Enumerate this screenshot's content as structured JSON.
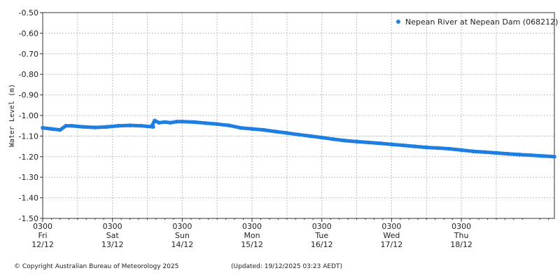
{
  "chart_data": {
    "type": "scatter",
    "ylabel": "Water Level (m)",
    "ylim": [
      -1.5,
      -0.5
    ],
    "yticks": [
      "-0.50",
      "-0.60",
      "-0.70",
      "-0.80",
      "-0.90",
      "-1.00",
      "-1.10",
      "-1.20",
      "-1.30",
      "-1.40",
      "-1.50"
    ],
    "ytick_values": [
      -0.5,
      -0.6,
      -0.7,
      -0.8,
      -0.9,
      -1.0,
      -1.1,
      -1.2,
      -1.3,
      -1.4,
      -1.5
    ],
    "xlim_hours": [
      0,
      176
    ],
    "xticks": [
      {
        "h": 0,
        "time": "0300",
        "day": "Fri",
        "date": "12/12"
      },
      {
        "h": 24,
        "time": "0300",
        "day": "Sat",
        "date": "13/12"
      },
      {
        "h": 48,
        "time": "0300",
        "day": "Sun",
        "date": "14/12"
      },
      {
        "h": 72,
        "time": "0300",
        "day": "Mon",
        "date": "15/12"
      },
      {
        "h": 96,
        "time": "0300",
        "day": "Tue",
        "date": "16/12"
      },
      {
        "h": 120,
        "time": "0300",
        "day": "Wed",
        "date": "17/12"
      },
      {
        "h": 144,
        "time": "0300",
        "day": "Thu",
        "date": "18/12"
      }
    ],
    "minor_hours": [
      12,
      36,
      60,
      84,
      108,
      132,
      156
    ],
    "grid": true,
    "legend_position": "top-right",
    "series": [
      {
        "name": "Nepean River at Nepean Dam (068212)",
        "color": "#1e7fe0",
        "x": [
          0,
          3,
          6,
          8,
          10,
          14,
          18,
          22,
          26,
          30,
          34,
          38,
          37.5,
          38.5,
          40,
          42,
          44,
          46,
          48,
          52,
          56,
          60,
          64,
          68,
          72,
          76,
          80,
          84,
          88,
          92,
          96,
          100,
          104,
          108,
          112,
          116,
          120,
          124,
          128,
          132,
          136,
          140,
          144,
          148,
          152,
          156,
          160,
          164,
          168,
          172,
          176
        ],
        "y": [
          -1.06,
          -1.065,
          -1.07,
          -1.05,
          -1.05,
          -1.055,
          -1.058,
          -1.055,
          -1.05,
          -1.048,
          -1.05,
          -1.055,
          -1.052,
          -1.025,
          -1.035,
          -1.032,
          -1.035,
          -1.03,
          -1.03,
          -1.032,
          -1.037,
          -1.042,
          -1.048,
          -1.06,
          -1.065,
          -1.07,
          -1.078,
          -1.085,
          -1.093,
          -1.1,
          -1.107,
          -1.115,
          -1.122,
          -1.127,
          -1.131,
          -1.135,
          -1.14,
          -1.145,
          -1.15,
          -1.155,
          -1.158,
          -1.162,
          -1.168,
          -1.174,
          -1.178,
          -1.182,
          -1.186,
          -1.19,
          -1.193,
          -1.197,
          -1.2
        ]
      }
    ]
  },
  "footer": {
    "copyright": "© Copyright Australian Bureau of Meteorology 2025",
    "updated": "(Updated: 19/12/2025 03:23 AEDT)"
  }
}
